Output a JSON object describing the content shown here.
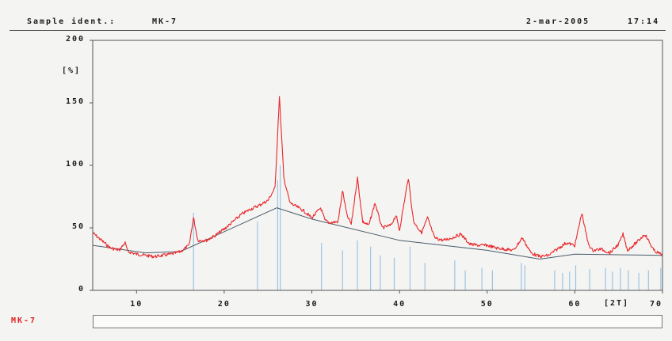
{
  "header": {
    "sample_ident_label": "Sample ident.:",
    "sample_ident_value": "MK-7",
    "date": "2-mar-2005",
    "time": "17:14"
  },
  "legend": {
    "sample_name": "MK-7"
  },
  "colors": {
    "pattern": "#e8262a",
    "background_line": "#4a5a6a",
    "reference_lines": "#9ec4e2",
    "axis": "#555555",
    "background": "#f4f4f2"
  },
  "chart_data": {
    "type": "line",
    "title": "",
    "xlabel": "[2T]",
    "ylabel": "[%]",
    "xlim": [
      5,
      70
    ],
    "ylim": [
      0,
      200
    ],
    "x_ticks": [
      10,
      20,
      30,
      40,
      50,
      60,
      70
    ],
    "y_ticks": [
      0,
      50,
      100,
      150,
      200
    ],
    "grid": false,
    "series": [
      {
        "values": [
          [
            5,
            46
          ],
          [
            6,
            40
          ],
          [
            7,
            34
          ],
          [
            8,
            32
          ],
          [
            8.7,
            38
          ],
          [
            9,
            31
          ],
          [
            10,
            29
          ],
          [
            11,
            28
          ],
          [
            12,
            27
          ],
          [
            13,
            28
          ],
          [
            14,
            29
          ],
          [
            15,
            31
          ],
          [
            16,
            36
          ],
          [
            16.5,
            58
          ],
          [
            17,
            40
          ],
          [
            18,
            40
          ],
          [
            19,
            44
          ],
          [
            20,
            49
          ],
          [
            21,
            55
          ],
          [
            22,
            61
          ],
          [
            23,
            65
          ],
          [
            24,
            68
          ],
          [
            25,
            72
          ],
          [
            25.8,
            82
          ],
          [
            26.3,
            155
          ],
          [
            26.8,
            90
          ],
          [
            27.5,
            70
          ],
          [
            28,
            68
          ],
          [
            29,
            64
          ],
          [
            30,
            58
          ],
          [
            31,
            66
          ],
          [
            31.5,
            56
          ],
          [
            32,
            54
          ],
          [
            33,
            55
          ],
          [
            33.5,
            80
          ],
          [
            34,
            60
          ],
          [
            34.5,
            53
          ],
          [
            35.2,
            90
          ],
          [
            35.8,
            55
          ],
          [
            36.5,
            52
          ],
          [
            37.2,
            70
          ],
          [
            38,
            50
          ],
          [
            39,
            52
          ],
          [
            39.6,
            60
          ],
          [
            40,
            48
          ],
          [
            41,
            90
          ],
          [
            41.6,
            55
          ],
          [
            42.5,
            46
          ],
          [
            43.2,
            58
          ],
          [
            44,
            42
          ],
          [
            45,
            40
          ],
          [
            46,
            42
          ],
          [
            47,
            45
          ],
          [
            48,
            37
          ],
          [
            49,
            36
          ],
          [
            50,
            36
          ],
          [
            51,
            34
          ],
          [
            52,
            33
          ],
          [
            53,
            32
          ],
          [
            54,
            42
          ],
          [
            55,
            30
          ],
          [
            56,
            27
          ],
          [
            57,
            28
          ],
          [
            58,
            33
          ],
          [
            59,
            38
          ],
          [
            60,
            36
          ],
          [
            60.8,
            62
          ],
          [
            61.5,
            38
          ],
          [
            62,
            32
          ],
          [
            63,
            33
          ],
          [
            64,
            30
          ],
          [
            65,
            37
          ],
          [
            65.5,
            45
          ],
          [
            66,
            32
          ],
          [
            67,
            38
          ],
          [
            68,
            45
          ],
          [
            69,
            32
          ],
          [
            70,
            28
          ]
        ]
      },
      {
        "values": [
          [
            5,
            36
          ],
          [
            11,
            30
          ],
          [
            15,
            31
          ],
          [
            26,
            66
          ],
          [
            30,
            57
          ],
          [
            40,
            40
          ],
          [
            50,
            32
          ],
          [
            56,
            25
          ],
          [
            60,
            29
          ],
          [
            70,
            28
          ]
        ]
      }
    ],
    "reference_lines": [
      [
        16.5,
        62
      ],
      [
        23.8,
        55
      ],
      [
        26.1,
        88
      ],
      [
        26.4,
        100
      ],
      [
        31.1,
        38
      ],
      [
        33.5,
        32
      ],
      [
        35.2,
        40
      ],
      [
        36.7,
        35
      ],
      [
        37.8,
        28
      ],
      [
        39.4,
        26
      ],
      [
        41.2,
        35
      ],
      [
        42.9,
        22
      ],
      [
        46.3,
        24
      ],
      [
        47.5,
        16
      ],
      [
        49.4,
        18
      ],
      [
        50.6,
        16
      ],
      [
        53.9,
        22
      ],
      [
        54.3,
        20
      ],
      [
        57.7,
        16
      ],
      [
        58.6,
        14
      ],
      [
        59.4,
        15
      ],
      [
        60.1,
        20
      ],
      [
        61.7,
        17
      ],
      [
        63.5,
        18
      ],
      [
        64.3,
        15
      ],
      [
        65.2,
        18
      ],
      [
        66.1,
        16
      ],
      [
        67.3,
        14
      ],
      [
        68.4,
        16
      ],
      [
        69.8,
        18
      ]
    ]
  }
}
